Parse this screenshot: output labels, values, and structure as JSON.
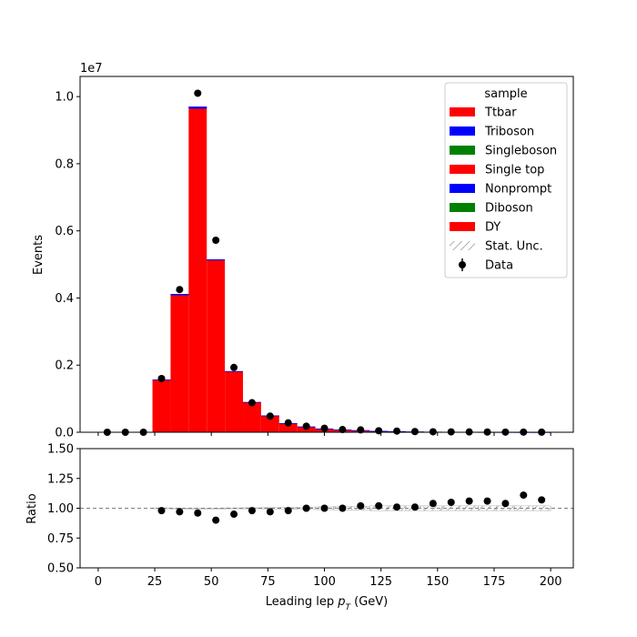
{
  "chart_data": {
    "type": "bar",
    "stacked": true,
    "main": {
      "ylabel": "Events",
      "yscale_label": "1e7",
      "ylim": [
        0,
        10.6
      ],
      "yticks": [
        "0.0",
        "0.2",
        "0.4",
        "0.6",
        "0.8",
        "1.0"
      ],
      "ytick_values": [
        0,
        2,
        4,
        6,
        8,
        10
      ]
    },
    "xlim": [
      -8,
      210
    ],
    "xticks": [
      "0",
      "25",
      "50",
      "75",
      "100",
      "125",
      "150",
      "175",
      "200"
    ],
    "xtick_values": [
      0,
      25,
      50,
      75,
      100,
      125,
      150,
      175,
      200
    ],
    "xlabel_prefix": "Leading lep ",
    "xlabel_var": "p",
    "xlabel_sub": "T",
    "xlabel_suffix": " (GeV)",
    "bin_edges": [
      0,
      8,
      16,
      24,
      32,
      40,
      48,
      56,
      64,
      72,
      80,
      88,
      96,
      104,
      112,
      120,
      128,
      136,
      144,
      152,
      160,
      168,
      176,
      184,
      192,
      200
    ],
    "stack_total": [
      0,
      0,
      0,
      1.57,
      4.12,
      9.7,
      5.15,
      1.82,
      0.9,
      0.5,
      0.27,
      0.17,
      0.11,
      0.08,
      0.06,
      0.04,
      0.03,
      0.02,
      0.015,
      0.01,
      0.008,
      0.006,
      0.005,
      0.004,
      0.003
    ],
    "stack_components": [
      {
        "name": "DY",
        "values": [
          0,
          0,
          0,
          1.56,
          4.08,
          9.64,
          5.12,
          1.81,
          0.89,
          0.49,
          0.26,
          0.16,
          0.1,
          0.07,
          0.05,
          0.03,
          0.025,
          0.015,
          0.01,
          0.008,
          0.006,
          0.004,
          0.004,
          0.003,
          0.002
        ]
      },
      {
        "name": "Nonprompt",
        "values": [
          0,
          0,
          0,
          0.01,
          0.04,
          0.06,
          0.03,
          0.01,
          0.01,
          0.01,
          0.01,
          0.01,
          0.01,
          0.01,
          0.01,
          0.01,
          0.005,
          0.005,
          0.005,
          0.002,
          0.002,
          0.002,
          0.001,
          0.001,
          0.001
        ]
      }
    ],
    "data_points": {
      "x": [
        4,
        12,
        20,
        28,
        36,
        44,
        52,
        60,
        68,
        76,
        84,
        92,
        100,
        108,
        116,
        124,
        132,
        140,
        148,
        156,
        164,
        172,
        180,
        188,
        196
      ],
      "y": [
        0,
        0,
        0,
        1.6,
        4.25,
        10.1,
        5.72,
        1.93,
        0.88,
        0.48,
        0.28,
        0.18,
        0.12,
        0.08,
        0.07,
        0.045,
        0.035,
        0.02,
        0.015,
        0.011,
        0.009,
        0.007,
        0.005,
        0.004,
        0.003
      ]
    },
    "ratio": {
      "ylabel": "Ratio",
      "ylim": [
        0.5,
        1.5
      ],
      "yticks": [
        "0.50",
        "0.75",
        "1.00",
        "1.25",
        "1.50"
      ],
      "ytick_values": [
        0.5,
        0.75,
        1.0,
        1.25,
        1.5
      ],
      "x": [
        28,
        36,
        44,
        52,
        60,
        68,
        76,
        84,
        92,
        100,
        108,
        116,
        124,
        132,
        140,
        148,
        156,
        164,
        172,
        180,
        188,
        196
      ],
      "y": [
        0.98,
        0.97,
        0.96,
        0.9,
        0.95,
        0.98,
        0.97,
        0.98,
        1.0,
        1.0,
        1.0,
        1.02,
        1.02,
        1.01,
        1.01,
        1.04,
        1.05,
        1.06,
        1.06,
        1.04,
        1.11,
        1.07
      ]
    },
    "legend": {
      "title": "sample",
      "placement": "top-right",
      "entries": [
        {
          "label": "Ttbar",
          "kind": "patch",
          "color": "#ff0000"
        },
        {
          "label": "Triboson",
          "kind": "patch",
          "color": "#0000ff"
        },
        {
          "label": "Singleboson",
          "kind": "patch",
          "color": "#008000"
        },
        {
          "label": "Single top",
          "kind": "patch",
          "color": "#ff0000"
        },
        {
          "label": "Nonprompt",
          "kind": "patch",
          "color": "#0000ff"
        },
        {
          "label": "Diboson",
          "kind": "patch",
          "color": "#008000"
        },
        {
          "label": "DY",
          "kind": "patch",
          "color": "#ff0000"
        },
        {
          "label": "Stat. Unc.",
          "kind": "hatch",
          "color": "#999999"
        },
        {
          "label": "Data",
          "kind": "marker",
          "color": "#000000"
        }
      ]
    }
  }
}
